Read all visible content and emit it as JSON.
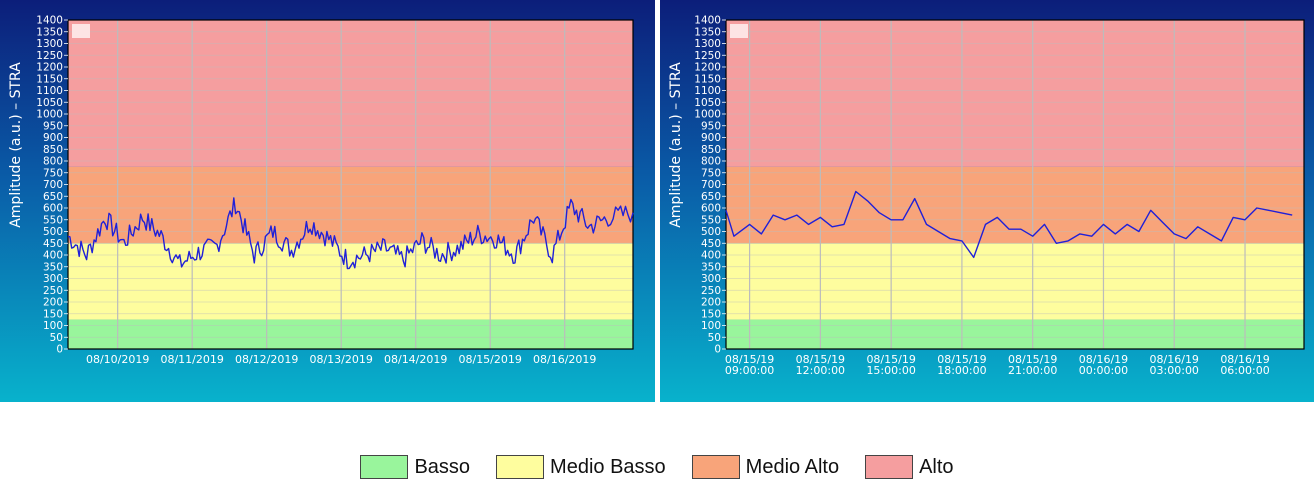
{
  "colors": {
    "basso": "#99f59c",
    "medio_basso": "#fefd9e",
    "medio_alto": "#f8a47a",
    "alto": "#f59e9f",
    "line": "#2020d8",
    "grid": "#bcbcbc",
    "axis_text": "#ffffff"
  },
  "legend": {
    "items": [
      {
        "label": "Basso",
        "color": "#99f59c"
      },
      {
        "label": "Medio Basso",
        "color": "#fefd9e"
      },
      {
        "label": "Medio Alto",
        "color": "#f8a47a"
      },
      {
        "label": "Alto",
        "color": "#f59e9f"
      }
    ]
  },
  "chart_data": [
    {
      "type": "line",
      "ylabel": "Amplitude (a.u.) – STRA",
      "ylim": [
        0,
        1400
      ],
      "ytick_step": 50,
      "grid": true,
      "bands": [
        {
          "name": "Basso",
          "from": 0,
          "to": 125
        },
        {
          "name": "Medio Basso",
          "from": 125,
          "to": 450
        },
        {
          "name": "Medio Alto",
          "from": 450,
          "to": 775
        },
        {
          "name": "Alto",
          "from": 775,
          "to": 1400
        }
      ],
      "xlim": [
        "08/09/2019 08:00",
        "08/16/2019 22:00"
      ],
      "xticks": [
        "08/10/2019",
        "08/11/2019",
        "08/12/2019",
        "08/13/2019",
        "08/14/2019",
        "08/15/2019",
        "08/16/2019"
      ],
      "series": [
        {
          "x": [
            "08/09/2019 08:00",
            "08/09/2019 14:00",
            "08/09/2019 20:00",
            "08/10/2019 02:00",
            "08/10/2019 08:00",
            "08/10/2019 14:00",
            "08/10/2019 20:00",
            "08/11/2019 02:00",
            "08/11/2019 08:00",
            "08/11/2019 14:00",
            "08/11/2019 20:00",
            "08/12/2019 02:00",
            "08/12/2019 08:00",
            "08/12/2019 14:00",
            "08/12/2019 20:00",
            "08/13/2019 02:00",
            "08/13/2019 08:00",
            "08/13/2019 14:00",
            "08/13/2019 20:00",
            "08/14/2019 02:00",
            "08/14/2019 08:00",
            "08/14/2019 14:00",
            "08/14/2019 20:00",
            "08/15/2019 02:00",
            "08/15/2019 08:00",
            "08/15/2019 14:00",
            "08/15/2019 20:00",
            "08/16/2019 02:00",
            "08/16/2019 08:00",
            "08/16/2019 14:00",
            "08/16/2019 22:00"
          ],
          "y": [
            480,
            400,
            560,
            450,
            560,
            480,
            360,
            410,
            440,
            620,
            400,
            500,
            420,
            540,
            470,
            380,
            400,
            430,
            380,
            460,
            400,
            430,
            490,
            470,
            400,
            560,
            400,
            610,
            520,
            560,
            580
          ]
        }
      ]
    },
    {
      "type": "line",
      "ylabel": "Amplitude (a.u.) – STRA",
      "ylim": [
        0,
        1400
      ],
      "ytick_step": 50,
      "grid": true,
      "bands": [
        {
          "name": "Basso",
          "from": 0,
          "to": 125
        },
        {
          "name": "Medio Basso",
          "from": 125,
          "to": 450
        },
        {
          "name": "Medio Alto",
          "from": 450,
          "to": 775
        },
        {
          "name": "Alto",
          "from": 775,
          "to": 1400
        }
      ],
      "xlim": [
        "08/15/19 08:00",
        "08/16/19 08:30"
      ],
      "xticks": [
        [
          "08/15/19",
          "09:00:00"
        ],
        [
          "08/15/19",
          "12:00:00"
        ],
        [
          "08/15/19",
          "15:00:00"
        ],
        [
          "08/15/19",
          "18:00:00"
        ],
        [
          "08/15/19",
          "21:00:00"
        ],
        [
          "08/16/19",
          "00:00:00"
        ],
        [
          "08/16/19",
          "03:00:00"
        ],
        [
          "08/16/19",
          "06:00:00"
        ]
      ],
      "series": [
        {
          "x": [
            "08/15/19 08:00",
            "08:20",
            "09:00",
            "09:30",
            "10:00",
            "10:30",
            "11:00",
            "11:30",
            "12:00",
            "12:30",
            "13:00",
            "13:30",
            "14:00",
            "14:30",
            "15:00",
            "15:30",
            "16:00",
            "16:30",
            "17:00",
            "17:30",
            "18:00",
            "18:30",
            "19:00",
            "19:30",
            "20:00",
            "20:30",
            "21:00",
            "21:30",
            "22:00",
            "22:30",
            "23:00",
            "23:30",
            "08/16/19 00:00",
            "00:30",
            "01:00",
            "01:30",
            "02:00",
            "02:30",
            "03:00",
            "03:30",
            "04:00",
            "04:30",
            "05:00",
            "05:30",
            "06:00",
            "06:30",
            "07:00",
            "07:30",
            "08:00"
          ],
          "y": [
            590,
            480,
            530,
            490,
            570,
            550,
            570,
            530,
            560,
            520,
            530,
            670,
            630,
            580,
            550,
            550,
            640,
            530,
            500,
            470,
            460,
            390,
            530,
            560,
            510,
            510,
            480,
            530,
            450,
            460,
            490,
            480,
            530,
            490,
            530,
            500,
            590,
            540,
            490,
            470,
            520,
            490,
            460,
            560,
            550,
            600,
            590,
            580,
            570
          ]
        }
      ]
    }
  ]
}
